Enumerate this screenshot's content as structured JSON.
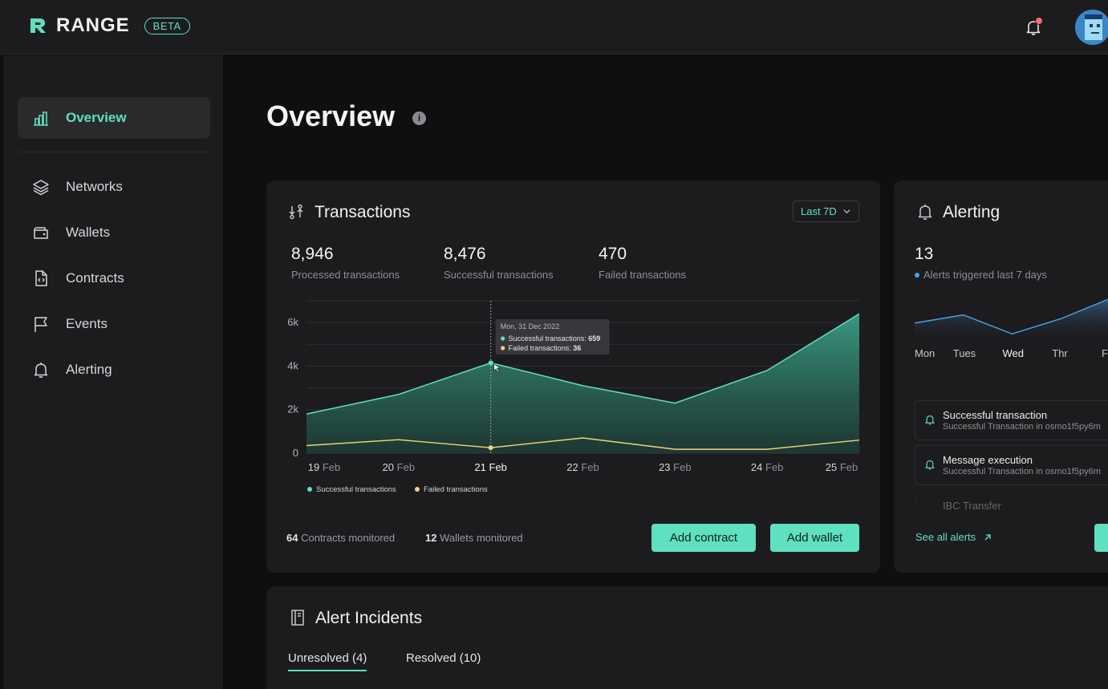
{
  "brand": {
    "name": "RANGE",
    "badge": "BETA"
  },
  "sidebar": {
    "items": [
      {
        "label": "Overview",
        "icon": "bar-chart-icon"
      },
      {
        "label": "Networks",
        "icon": "layers-icon"
      },
      {
        "label": "Wallets",
        "icon": "wallet-icon"
      },
      {
        "label": "Contracts",
        "icon": "contract-icon"
      },
      {
        "label": "Events",
        "icon": "flag-icon"
      },
      {
        "label": "Alerting",
        "icon": "bell-icon"
      }
    ]
  },
  "page": {
    "title": "Overview"
  },
  "transactions": {
    "title": "Transactions",
    "range_select": "Last 7D",
    "stats": [
      {
        "value": "8,946",
        "label": "Processed transactions"
      },
      {
        "value": "8,476",
        "label": "Successful transactions"
      },
      {
        "value": "470",
        "label": "Failed transactions"
      }
    ],
    "footer": {
      "contracts_count": "64",
      "contracts_label": "Contracts monitored",
      "wallets_count": "12",
      "wallets_label": "Wallets monitored"
    },
    "add_contract": "Add contract",
    "add_wallet": "Add wallet"
  },
  "chart_data": {
    "type": "area",
    "categories": [
      "19 Feb",
      "20 Feb",
      "21 Feb",
      "22 Feb",
      "23 Feb",
      "24 Feb",
      "25 Feb"
    ],
    "series": [
      {
        "name": "Successful transactions",
        "values": [
          1800,
          2700,
          4150,
          3100,
          2300,
          3800,
          6400
        ],
        "color": "#5fe0c0"
      },
      {
        "name": "Failed transactions",
        "values": [
          350,
          620,
          250,
          700,
          180,
          180,
          600
        ],
        "color": "#f2d37a"
      }
    ],
    "yticks": [
      "0",
      "2k",
      "4k",
      "6k"
    ],
    "ylim": [
      0,
      7000
    ],
    "highlight_index": 2,
    "tooltip": {
      "date": "Mon, 31 Dec 2022",
      "success_label": "Successful transactions:",
      "success_value": "659",
      "failed_label": "Failed transactions:",
      "failed_value": "36"
    },
    "legend": "bottom-left",
    "grid": true
  },
  "alerting": {
    "title": "Alerting",
    "count": "13",
    "count_label": "Alerts triggered last 7 days",
    "days": [
      "Mon",
      "Tues",
      "Wed",
      "Thr",
      "Fri"
    ],
    "trend_values": [
      3,
      4.5,
      1,
      3.8,
      7.5
    ],
    "items": [
      {
        "title": "Successful transaction",
        "subtitle": "Successful Transaction in osmo1f5py6m"
      },
      {
        "title": "Message execution",
        "subtitle": "Successful Transaction in osmo1f5py6m"
      },
      {
        "title": "IBC Transfer",
        "subtitle": ""
      }
    ],
    "see_all": "See all alerts"
  },
  "incidents": {
    "title": "Alert Incidents",
    "tabs": [
      "Unresolved (4)",
      "Resolved (10)"
    ]
  },
  "colors": {
    "accent": "#5fe0c0",
    "failed": "#f2d37a",
    "notification": "#ff6b6b"
  }
}
